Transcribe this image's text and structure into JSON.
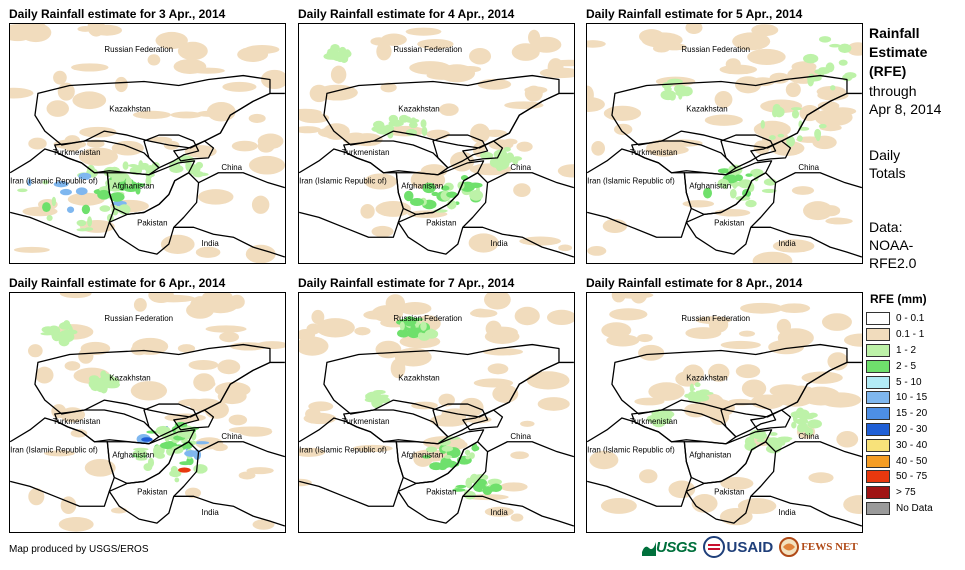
{
  "panels": [
    {
      "title": "Daily Rainfall estimate for 3 Apr., 2014"
    },
    {
      "title": "Daily Rainfall estimate for 4 Apr., 2014"
    },
    {
      "title": "Daily Rainfall estimate for 5 Apr., 2014"
    },
    {
      "title": "Daily Rainfall estimate for 6 Apr., 2014"
    },
    {
      "title": "Daily Rainfall estimate for 7 Apr., 2014"
    },
    {
      "title": "Daily Rainfall estimate for 8 Apr., 2014"
    }
  ],
  "map_labels": {
    "russia": "Russian Federation",
    "kazakhstan": "Kazakhstan",
    "turkmenistan": "Turkmenistan",
    "iran": "Iran  (Islamic Republic of)",
    "afghanistan": "Afghanistan",
    "pakistan": "Pakistan",
    "china": "China",
    "india": "India"
  },
  "side": {
    "title_line1": "Rainfall",
    "title_line2": "Estimate",
    "title_line3": "(RFE)",
    "through": "through",
    "date": "Apr 8, 2014",
    "totals1": "Daily",
    "totals2": "Totals",
    "data_label": "Data:",
    "data_src1": "NOAA-",
    "data_src2": "RFE2.0"
  },
  "legend": {
    "title": "RFE (mm)",
    "items": [
      {
        "label": "0 - 0.1",
        "color": "#ffffff"
      },
      {
        "label": "0.1 - 1",
        "color": "#f1dcbd"
      },
      {
        "label": "1 - 2",
        "color": "#bdf2a8"
      },
      {
        "label": "2 - 5",
        "color": "#6fe06c"
      },
      {
        "label": "5 - 10",
        "color": "#b3ecf6"
      },
      {
        "label": "10 - 15",
        "color": "#7fb7ef"
      },
      {
        "label": "15 - 20",
        "color": "#4d8fe6"
      },
      {
        "label": "20 - 30",
        "color": "#1f5fd6"
      },
      {
        "label": "30 - 40",
        "color": "#f8e27a"
      },
      {
        "label": "40 - 50",
        "color": "#f59d24"
      },
      {
        "label": "50 - 75",
        "color": "#e8380e"
      },
      {
        "label": "> 75",
        "color": "#a01414"
      },
      {
        "label": "No Data",
        "color": "#9a9a9a"
      }
    ]
  },
  "credit": "Map produced by USGS/EROS",
  "logos": {
    "usgs": "USGS",
    "usaid": "USAID",
    "fewsnet": "FEWS NET"
  }
}
